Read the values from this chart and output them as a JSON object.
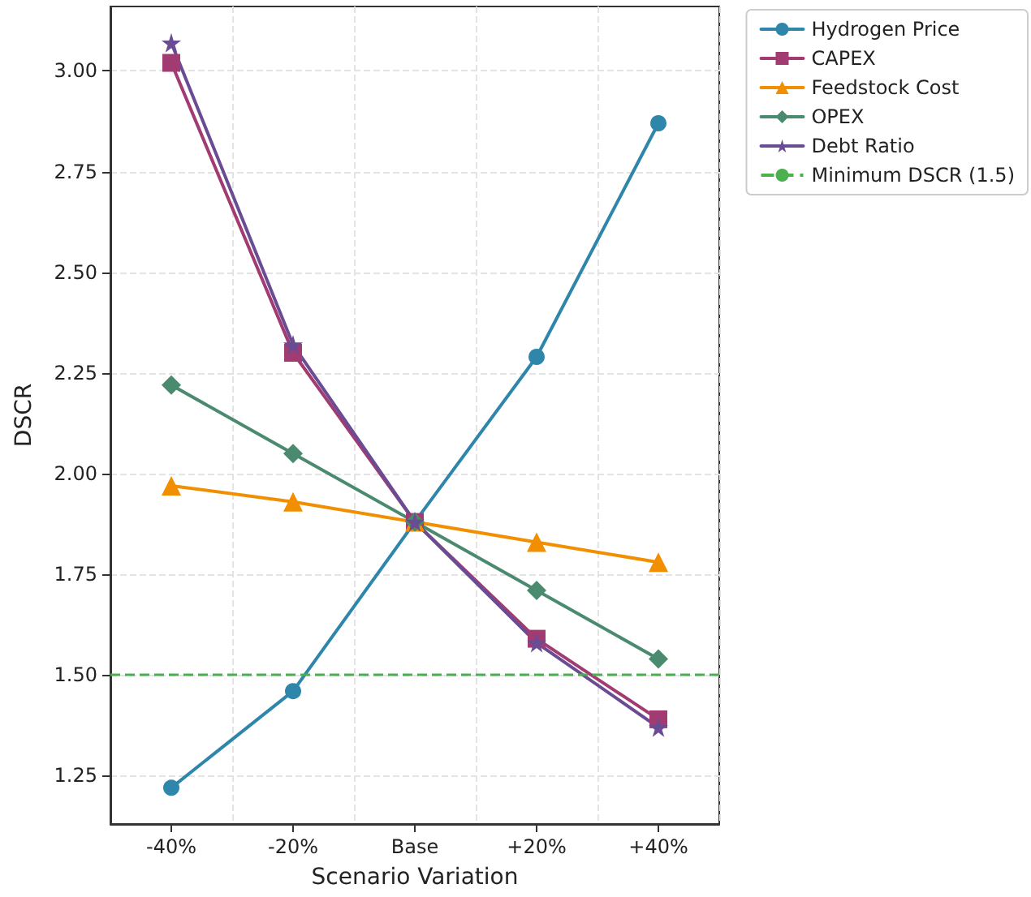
{
  "chart_data": {
    "type": "line",
    "xlabel": "Scenario Variation",
    "ylabel": "DSCR",
    "categories": [
      "-40%",
      "-20%",
      "Base",
      "+20%",
      "+40%"
    ],
    "series": [
      {
        "name": "Hydrogen Price",
        "color": "#2e86ab",
        "marker": "circle",
        "values": [
          1.22,
          1.46,
          1.88,
          2.29,
          2.87
        ]
      },
      {
        "name": "CAPEX",
        "color": "#a23b72",
        "marker": "square",
        "values": [
          3.02,
          2.3,
          1.88,
          1.59,
          1.39
        ]
      },
      {
        "name": "Feedstock Cost",
        "color": "#f18f01",
        "marker": "triangle",
        "values": [
          1.97,
          1.93,
          1.88,
          1.83,
          1.78
        ]
      },
      {
        "name": "OPEX",
        "color": "#4a8a6e",
        "marker": "diamond",
        "values": [
          2.22,
          2.05,
          1.88,
          1.71,
          1.54
        ]
      },
      {
        "name": "Debt Ratio",
        "color": "#6a4c93",
        "marker": "star",
        "values": [
          3.07,
          2.32,
          1.88,
          1.58,
          1.37
        ]
      }
    ],
    "ylim": [
      1.13,
      3.16
    ],
    "yticks": [
      {
        "value": 1.25,
        "label": "1.25"
      },
      {
        "value": 1.5,
        "label": "1.50"
      },
      {
        "value": 1.75,
        "label": "1.75"
      },
      {
        "value": 2,
        "label": "2.00"
      },
      {
        "value": 2.25,
        "label": "2.25"
      },
      {
        "value": 2.5,
        "label": "2.50"
      },
      {
        "value": 2.75,
        "label": "2.75"
      },
      {
        "value": 3,
        "label": "3.00"
      }
    ],
    "ref_lines": [
      {
        "axis": "y",
        "value": 1.5,
        "label": "Minimum DSCR (1.5)",
        "color": "#4caf50",
        "line_style": "dashed"
      }
    ],
    "grid": true,
    "legend": "top right",
    "line_style": "solid"
  }
}
